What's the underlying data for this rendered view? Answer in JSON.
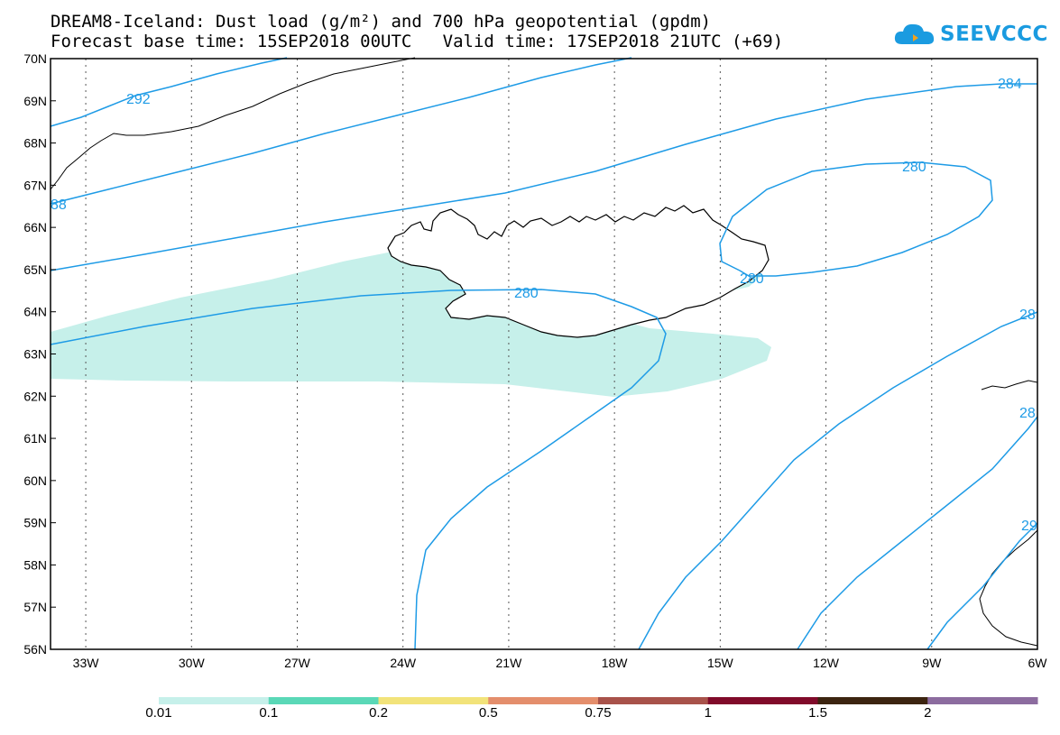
{
  "title": {
    "line1": "DREAM8-Iceland: Dust load (g/m²) and 700 hPa geopotential (gpdm)",
    "line2": "Forecast base time: 15SEP2018 00UTC   Valid time: 17SEP2018 21UTC (+69)"
  },
  "logo": {
    "text": "SEEVCCC",
    "icon": "cloud-icon"
  },
  "map": {
    "lon_range": [
      -34,
      -6
    ],
    "lat_range": [
      56,
      70
    ],
    "lat_ticks": [
      "70N",
      "69N",
      "68N",
      "67N",
      "66N",
      "65N",
      "64N",
      "63N",
      "62N",
      "61N",
      "60N",
      "59N",
      "58N",
      "57N",
      "56N"
    ],
    "lon_ticks": [
      "33W",
      "30W",
      "27W",
      "24W",
      "21W",
      "18W",
      "15W",
      "12W",
      "9W",
      "6W"
    ],
    "contour_labels": [
      "292",
      "88",
      "284",
      "280",
      "280",
      "280",
      "28",
      "28",
      "29"
    ],
    "contour_color": "#1e9be6",
    "dust_color": "#c6f0ea"
  },
  "legend": {
    "colors": [
      "#c6f0ea",
      "#5ad8b7",
      "#f2e37a",
      "#e48e6c",
      "#a8524a",
      "#800a2a",
      "#3c2410",
      "#8c6c9f"
    ],
    "labels": [
      "0.01",
      "0.1",
      "0.2",
      "0.5",
      "0.75",
      "1",
      "1.5",
      "2"
    ]
  }
}
